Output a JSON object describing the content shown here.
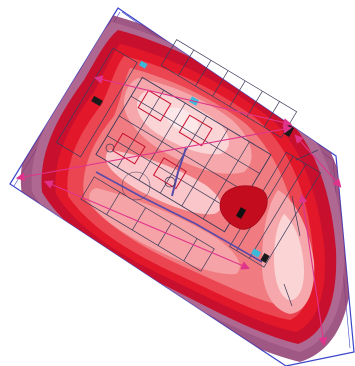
{
  "map": {
    "background": "#ffffff",
    "colors": {
      "outer_purple": "#8e3a6e",
      "outer_purple_light": "#b06a92",
      "dark_red": "#c8102e",
      "red": "#e3172a",
      "mid_red": "#ec4552",
      "salmon": "#f07b80",
      "pink": "#f5a7ab",
      "light_pink": "#fbd4d6",
      "pale": "#fde9ea",
      "hotspot": "#c40c1f",
      "boundary": "#3b44c8",
      "drawing": "#3a3a5a",
      "measure_arrow": "#e0348c",
      "cyan_marker": "#3ab9d8",
      "wall": "#5a4aa8"
    },
    "layers": {
      "site_boundary": "visible",
      "intensity_zones": "visible",
      "floor_plan": "visible",
      "measurement_arrows": "visible",
      "hotspot": "visible"
    },
    "icons": [
      "hotspot-blob-icon",
      "measure-arrow-icon",
      "equipment-marker-icon"
    ]
  }
}
